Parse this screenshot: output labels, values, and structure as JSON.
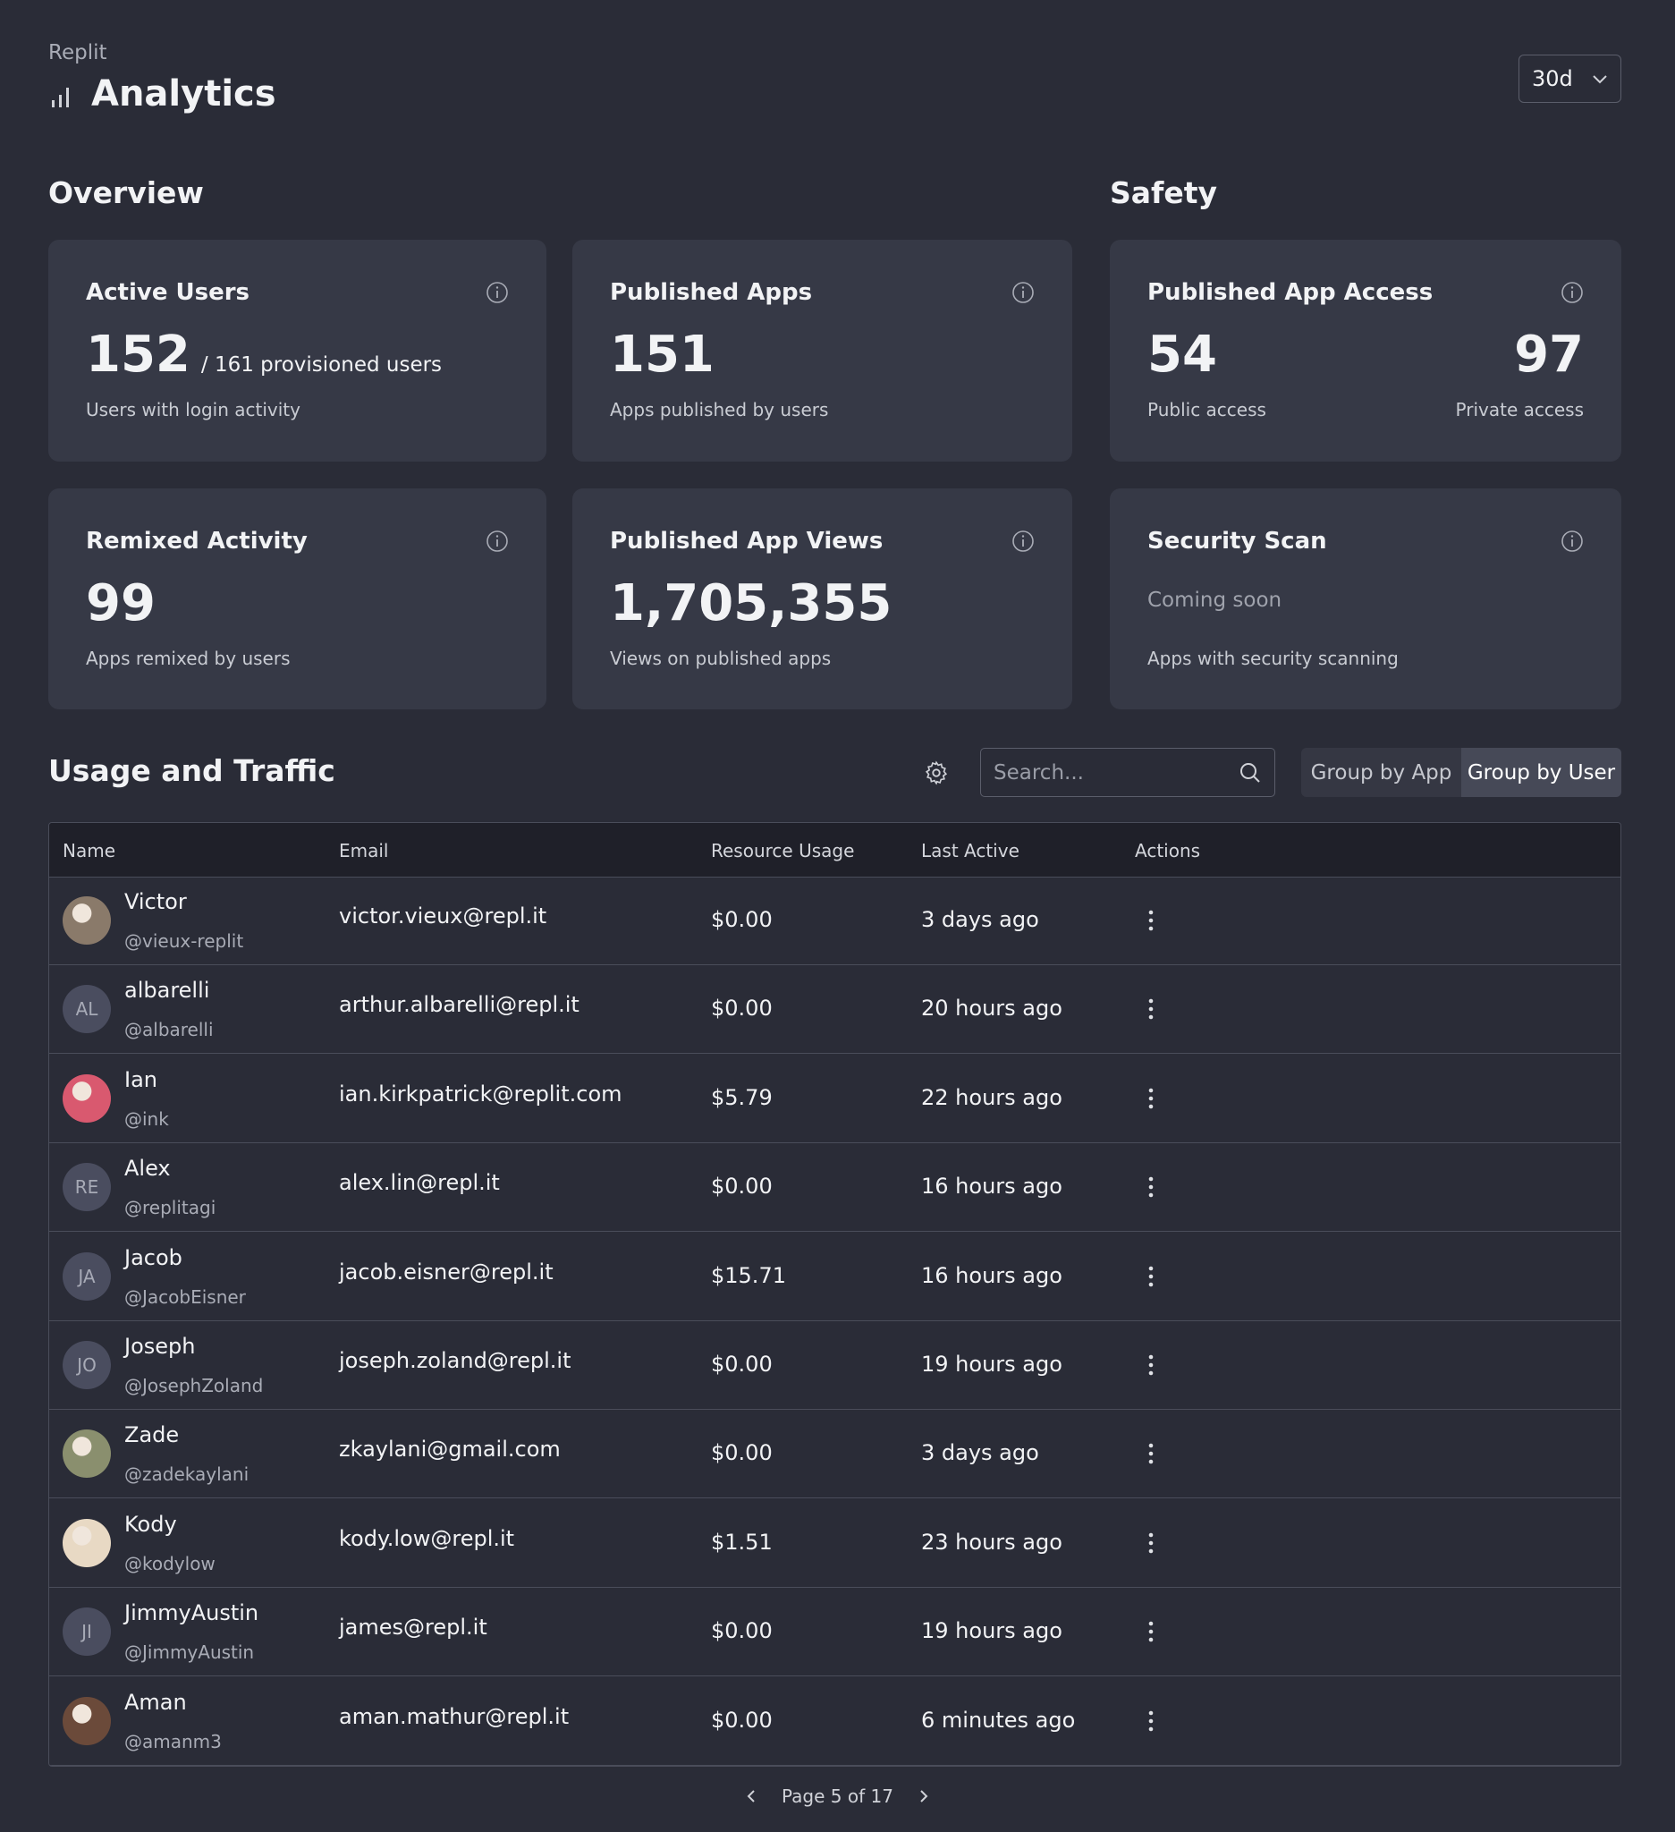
{
  "header": {
    "brand": "Replit",
    "title": "Analytics",
    "range": "30d"
  },
  "overview": {
    "heading": "Overview",
    "cards": [
      {
        "title": "Active Users",
        "value": "152",
        "suffix": "/ 161 provisioned users",
        "caption": "Users with login activity"
      },
      {
        "title": "Published Apps",
        "value": "151",
        "caption": "Apps published by users"
      },
      {
        "title": "Remixed Activity",
        "value": "99",
        "caption": "Apps remixed by users"
      },
      {
        "title": "Published App Views",
        "value": "1,705,355",
        "caption": "Views on published apps"
      }
    ]
  },
  "safety": {
    "heading": "Safety",
    "access": {
      "title": "Published App Access",
      "public_value": "54",
      "public_label": "Public access",
      "private_value": "97",
      "private_label": "Private access"
    },
    "scan": {
      "title": "Security Scan",
      "status": "Coming soon",
      "caption": "Apps with security scanning"
    }
  },
  "usage": {
    "heading": "Usage and Traffic",
    "search_placeholder": "Search...",
    "group_buttons": [
      "Group by App",
      "Group by User"
    ],
    "columns": [
      "Name",
      "Email",
      "Resource Usage",
      "Last Active",
      "Actions"
    ],
    "rows": [
      {
        "name": "Victor",
        "handle": "@vieux-replit",
        "email": "victor.vieux@repl.it",
        "usage": "$0.00",
        "last_active": "3 days ago"
      },
      {
        "name": "albarelli",
        "handle": "@albarelli",
        "email": "arthur.albarelli@repl.it",
        "usage": "$0.00",
        "last_active": "20 hours ago",
        "initials": "AL"
      },
      {
        "name": "Ian",
        "handle": "@ink",
        "email": "ian.kirkpatrick@replit.com",
        "usage": "$5.79",
        "last_active": "22 hours ago"
      },
      {
        "name": "Alex",
        "handle": "@replitagi",
        "email": "alex.lin@repl.it",
        "usage": "$0.00",
        "last_active": "16 hours ago",
        "initials": "RE"
      },
      {
        "name": "Jacob",
        "handle": "@JacobEisner",
        "email": "jacob.eisner@repl.it",
        "usage": "$15.71",
        "last_active": "16 hours ago",
        "initials": "JA"
      },
      {
        "name": "Joseph",
        "handle": "@JosephZoland",
        "email": "joseph.zoland@repl.it",
        "usage": "$0.00",
        "last_active": "19 hours ago",
        "initials": "JO"
      },
      {
        "name": "Zade",
        "handle": "@zadekaylani",
        "email": "zkaylani@gmail.com",
        "usage": "$0.00",
        "last_active": "3 days ago"
      },
      {
        "name": "Kody",
        "handle": "@kodylow",
        "email": "kody.low@repl.it",
        "usage": "$1.51",
        "last_active": "23 hours ago"
      },
      {
        "name": "JimmyAustin",
        "handle": "@JimmyAustin",
        "email": "james@repl.it",
        "usage": "$0.00",
        "last_active": "19 hours ago",
        "initials": "JI"
      },
      {
        "name": "Aman",
        "handle": "@amanm3",
        "email": "aman.mathur@repl.it",
        "usage": "$0.00",
        "last_active": "6 minutes ago"
      }
    ],
    "pagination": "Page 5 of 17"
  }
}
